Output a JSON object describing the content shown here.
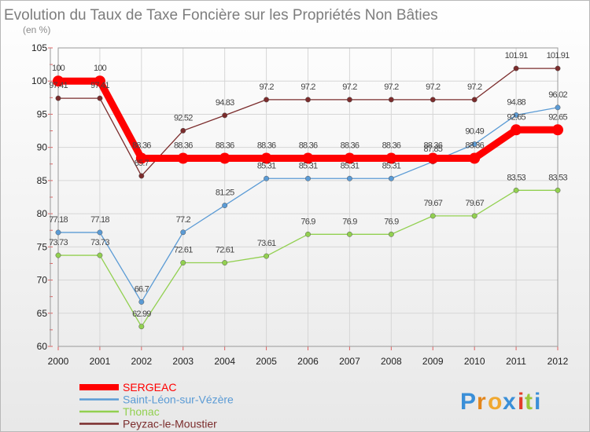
{
  "chart_data": {
    "type": "line",
    "title": "Evolution du Taux de Taxe Foncière sur les Propriétés Non Bâties",
    "subtitle": "(en %)",
    "xlabel": "",
    "ylabel": "",
    "ylim": [
      60,
      105
    ],
    "yticks": [
      "60",
      "65",
      "70",
      "75",
      "80",
      "85",
      "90",
      "95",
      "100",
      "105"
    ],
    "grid": true,
    "legend_position": "bottom-left",
    "categories": [
      "2000",
      "2001",
      "2002",
      "2003",
      "2004",
      "2005",
      "2006",
      "2007",
      "2008",
      "2009",
      "2010",
      "2011",
      "2012"
    ],
    "series": [
      {
        "name": "SERGEAC",
        "color": "#ff0000",
        "values": [
          100,
          100,
          88.36,
          88.36,
          88.36,
          88.36,
          88.36,
          88.36,
          88.36,
          88.36,
          88.36,
          92.65,
          92.65
        ],
        "labels": [
          "100",
          "100",
          "88.36",
          "88.36",
          "88.36",
          "88.36",
          "88.36",
          "88.36",
          "88.36",
          "88.36",
          "88.36",
          "92.65",
          "92.65"
        ]
      },
      {
        "name": "Saint-Léon-sur-Vézère",
        "color": "#5b9bd5",
        "values": [
          77.18,
          77.18,
          66.7,
          77.2,
          81.25,
          85.31,
          85.31,
          85.31,
          85.31,
          87.85,
          90.49,
          94.88,
          96.02
        ],
        "labels": [
          "77.18",
          "77.18",
          "66.7",
          "77.2",
          "81.25",
          "85.31",
          "85.31",
          "85.31",
          "85.31",
          "87.85",
          "90.49",
          "94.88",
          "96.02"
        ]
      },
      {
        "name": "Thonac",
        "color": "#92d050",
        "values": [
          73.73,
          73.73,
          62.99,
          72.61,
          72.61,
          73.61,
          76.9,
          76.9,
          76.9,
          79.67,
          79.67,
          83.53,
          83.53
        ],
        "labels": [
          "73.73",
          "73.73",
          "62.99",
          "72.61",
          "72.61",
          "73.61",
          "76.9",
          "76.9",
          "76.9",
          "79.67",
          "79.67",
          "83.53",
          "83.53"
        ]
      },
      {
        "name": "Peyzac-le-Moustier",
        "color": "#7b2c2c",
        "values": [
          97.41,
          97.41,
          85.7,
          92.52,
          94.83,
          97.2,
          97.2,
          97.2,
          97.2,
          97.2,
          97.2,
          101.91,
          101.91
        ],
        "labels": [
          "97.41",
          "97.41",
          "85.7",
          "92.52",
          "94.83",
          "97.2",
          "97.2",
          "97.2",
          "97.2",
          "97.2",
          "97.2",
          "101.91",
          "101.91"
        ]
      }
    ]
  },
  "logo": {
    "letters": [
      "P",
      "r",
      "o",
      "x",
      "i",
      "t",
      "i"
    ],
    "colors": [
      "#3a8fd8",
      "#e2861c",
      "#f0a830",
      "#3a8fd8",
      "#e23d2a",
      "#9bc73a",
      "#3a8fd8"
    ]
  }
}
